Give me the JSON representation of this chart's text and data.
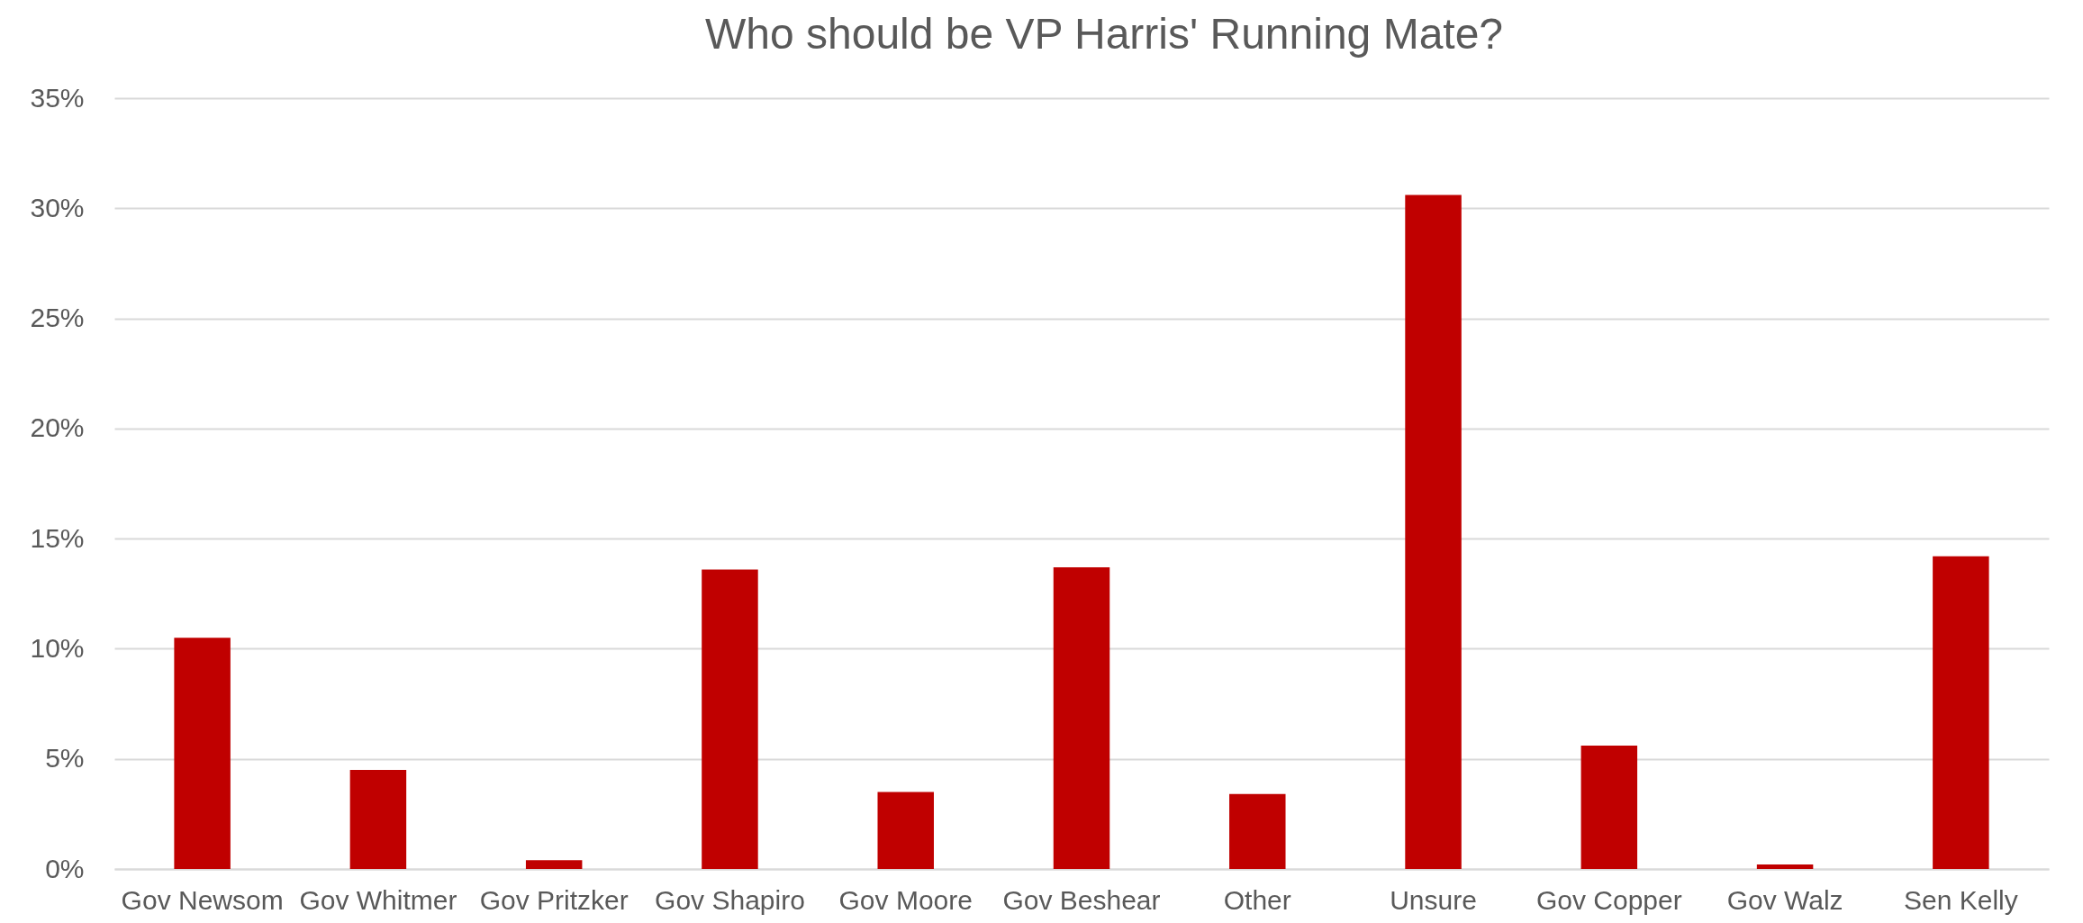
{
  "chart_data": {
    "type": "bar",
    "title": "Who should be VP Harris' Running Mate?",
    "categories": [
      "Gov Newsom",
      "Gov Whitmer",
      "Gov Pritzker",
      "Gov Shapiro",
      "Gov Moore",
      "Gov Beshear",
      "Other",
      "Unsure",
      "Gov Copper",
      "Gov Walz",
      "Sen Kelly"
    ],
    "values": [
      10.5,
      4.5,
      0.4,
      13.6,
      3.5,
      13.7,
      3.4,
      30.6,
      5.6,
      0.2,
      14.2
    ],
    "color": "#c00000",
    "ylim": [
      0,
      35
    ],
    "yticks": [
      {
        "value": 0,
        "label": "0%"
      },
      {
        "value": 5,
        "label": "5%"
      },
      {
        "value": 10,
        "label": "10%"
      },
      {
        "value": 15,
        "label": "15%"
      },
      {
        "value": 20,
        "label": "20%"
      },
      {
        "value": 25,
        "label": "25%"
      },
      {
        "value": 30,
        "label": "30%"
      },
      {
        "value": 35,
        "label": "35%"
      }
    ],
    "grid": "y"
  }
}
